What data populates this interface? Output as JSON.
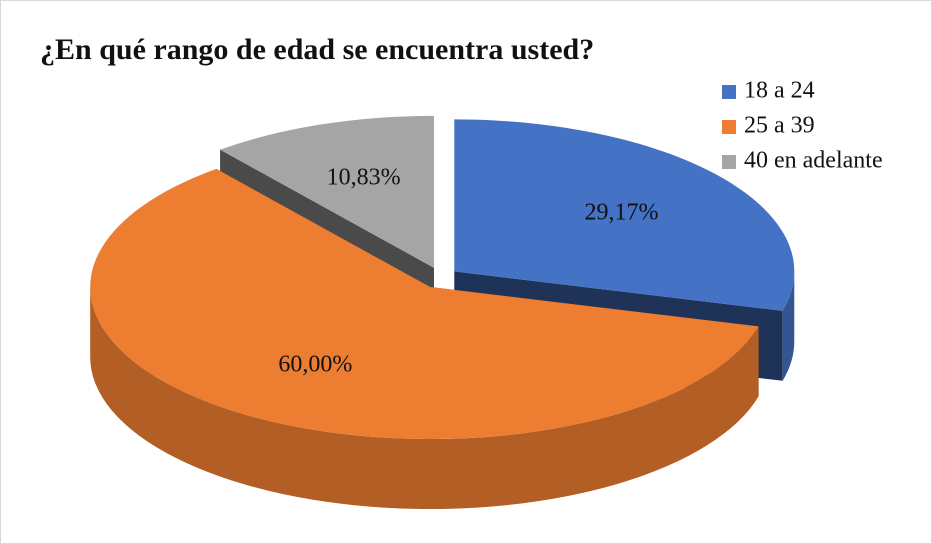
{
  "chart_data": {
    "type": "pie3d",
    "title": "¿En qué rango de edad se encuentra usted?",
    "categories": [
      "18 a 24",
      "25 a 39",
      "40 en adelante"
    ],
    "values": [
      29.17,
      60.0,
      10.83
    ],
    "value_labels": [
      "29,17%",
      "60,00%",
      "10,83%"
    ],
    "colors": [
      "#4472c4",
      "#ed7d31",
      "#a5a5a5"
    ],
    "legend": "top-right"
  }
}
